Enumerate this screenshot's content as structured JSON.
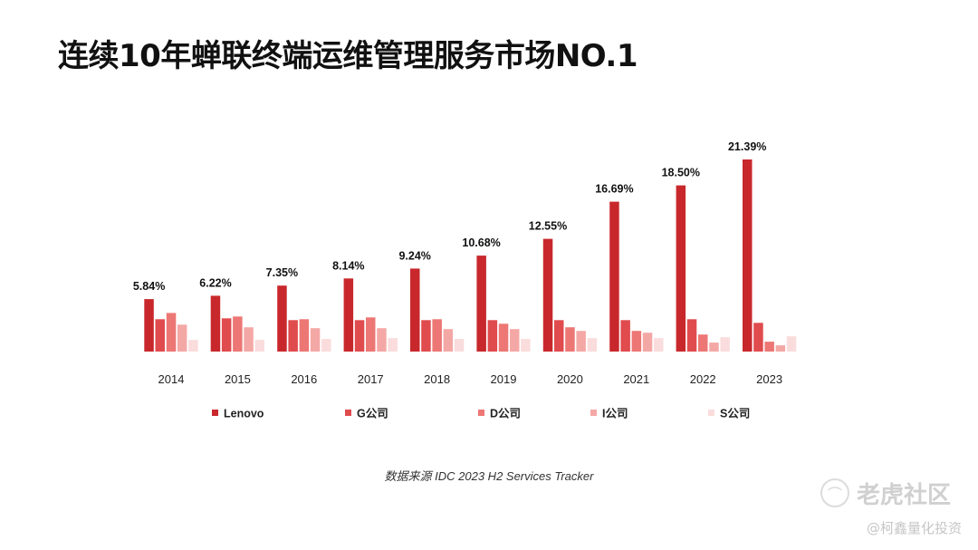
{
  "title": "连续10年蝉联终端运维管理服务市场NO.1",
  "source": "数据来源 IDC 2023 H2  Services Tracker",
  "watermark": {
    "brand": "老虎社区",
    "account": "@柯鑫量化投资",
    "logo_icon": "tiger-logo"
  },
  "colors": [
    "#c8282c",
    "#e04b4e",
    "#ec7774",
    "#f4a8a6",
    "#fadcdc"
  ],
  "chart_data": {
    "type": "bar",
    "categories": [
      "2014",
      "2015",
      "2016",
      "2017",
      "2018",
      "2019",
      "2020",
      "2021",
      "2022",
      "2023"
    ],
    "series": [
      {
        "name": "Lenovo",
        "values": [
          5.84,
          6.22,
          7.35,
          8.14,
          9.24,
          10.68,
          12.55,
          16.69,
          18.5,
          21.39
        ]
      },
      {
        "name": "G公司",
        "values": [
          3.6,
          3.7,
          3.5,
          3.5,
          3.5,
          3.5,
          3.5,
          3.5,
          3.6,
          3.2
        ]
      },
      {
        "name": "D公司",
        "values": [
          4.3,
          3.9,
          3.6,
          3.8,
          3.6,
          3.1,
          2.7,
          2.3,
          1.9,
          1.1
        ]
      },
      {
        "name": "I公司",
        "values": [
          3.0,
          2.7,
          2.6,
          2.6,
          2.5,
          2.5,
          2.3,
          2.1,
          1.0,
          0.7
        ]
      },
      {
        "name": "S公司",
        "values": [
          1.3,
          1.3,
          1.4,
          1.5,
          1.4,
          1.4,
          1.5,
          1.5,
          1.6,
          1.7
        ]
      }
    ],
    "data_labels": [
      "5.84%",
      "6.22%",
      "7.35%",
      "8.14%",
      "9.24%",
      "10.68%",
      "12.55%",
      "16.69%",
      "18.50%",
      "21.39%"
    ],
    "ylim": [
      0,
      22
    ],
    "grid": false,
    "legend": "bottom"
  }
}
